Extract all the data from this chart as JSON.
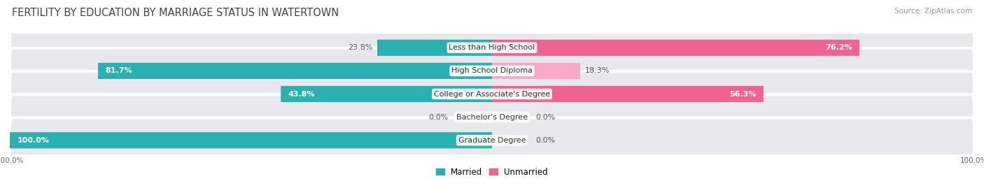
{
  "title": "FERTILITY BY EDUCATION BY MARRIAGE STATUS IN WATERTOWN",
  "source": "Source: ZipAtlas.com",
  "categories": [
    "Less than High School",
    "High School Diploma",
    "College or Associate's Degree",
    "Bachelor's Degree",
    "Graduate Degree"
  ],
  "married": [
    23.8,
    81.7,
    43.8,
    0.0,
    100.0
  ],
  "unmarried": [
    76.2,
    18.3,
    56.3,
    0.0,
    0.0
  ],
  "married_color_full": "#2ab0b0",
  "married_color_small": "#7dd4d4",
  "unmarried_color_full": "#f06292",
  "unmarried_color_small": "#f9a8c9",
  "bar_bg_color": "#e8e8ec",
  "title_fontsize": 10.5,
  "label_fontsize": 8.0,
  "source_fontsize": 7.5,
  "legend_fontsize": 8.5,
  "bar_height": 0.7,
  "xlim_left": -100,
  "xlim_right": 100,
  "small_bar_width": 8
}
